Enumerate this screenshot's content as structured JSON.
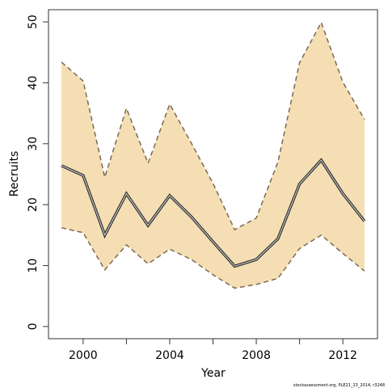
{
  "chart_data": {
    "type": "line",
    "xlabel": "Year",
    "ylabel": "Recruits",
    "xlim": [
      1998.4,
      2013.6
    ],
    "ylim": [
      -2,
      52
    ],
    "x_ticks": [
      2000,
      2002,
      2004,
      2006,
      2008,
      2010,
      2012
    ],
    "x_tick_labels": [
      "2000",
      "",
      "2004",
      "",
      "2008",
      "",
      "2012"
    ],
    "y_ticks": [
      0,
      10,
      20,
      30,
      40,
      50
    ],
    "y_tick_labels": [
      "0",
      "10",
      "20",
      "30",
      "40",
      "50"
    ],
    "grid": false,
    "x": [
      1999,
      2000,
      2001,
      2002,
      2003,
      2004,
      2005,
      2006,
      2007,
      2008,
      2009,
      2010,
      2011,
      2012,
      2013
    ],
    "series": [
      {
        "values": [
          26.4,
          24.8,
          15.0,
          21.8,
          16.6,
          21.5,
          18.0,
          13.9,
          9.9,
          11.0,
          14.4,
          23.4,
          27.3,
          21.8,
          17.3
        ]
      }
    ],
    "band_upper": [
      43.4,
      40.3,
      24.5,
      35.8,
      26.8,
      36.5,
      30.1,
      23.5,
      15.9,
      17.8,
      27.0,
      43.3,
      49.9,
      40.1,
      34.0
    ],
    "band_lower": [
      16.2,
      15.4,
      9.3,
      13.4,
      10.3,
      12.7,
      11.0,
      8.5,
      6.3,
      6.9,
      7.9,
      12.8,
      15.0,
      12.0,
      9.1
    ],
    "band_color": "#f5deb3",
    "line_color": "#333333",
    "caption": "stockassessment.org, PLE21_23_2014, r3248"
  }
}
